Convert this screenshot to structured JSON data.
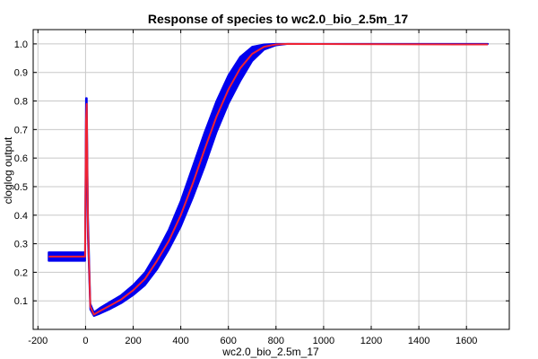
{
  "chart_data": {
    "type": "line",
    "title": "Response of species to wc2.0_bio_2.5m_17",
    "xlabel": "wc2.0_bio_2.5m_17",
    "ylabel": "cloglog output",
    "xlim": [
      -220,
      1780
    ],
    "ylim": [
      0.0,
      1.05
    ],
    "x_ticks": [
      -200,
      0,
      200,
      400,
      600,
      800,
      1000,
      1200,
      1400,
      1600
    ],
    "x_tick_labels": [
      "-200",
      "0",
      "200",
      "400",
      "600",
      "800",
      "1000",
      "1200",
      "1400",
      "1600"
    ],
    "y_ticks": [
      0.1,
      0.2,
      0.3,
      0.4,
      0.5,
      0.6,
      0.7,
      0.8,
      0.9,
      1.0
    ],
    "y_tick_labels": [
      "0.1",
      "0.2",
      "0.3",
      "0.4",
      "0.5",
      "0.6",
      "0.7",
      "0.8",
      "0.9",
      "1.0"
    ],
    "grid": true,
    "series": [
      {
        "role": "band",
        "color": "#0000ee",
        "upper": [
          [
            -155,
            0.27
          ],
          [
            -2,
            0.27
          ],
          [
            2,
            0.81
          ],
          [
            5,
            0.81
          ],
          [
            10,
            0.4
          ],
          [
            20,
            0.09
          ],
          [
            35,
            0.06
          ],
          [
            60,
            0.075
          ],
          [
            100,
            0.095
          ],
          [
            150,
            0.12
          ],
          [
            200,
            0.155
          ],
          [
            250,
            0.2
          ],
          [
            300,
            0.27
          ],
          [
            350,
            0.35
          ],
          [
            400,
            0.45
          ],
          [
            450,
            0.57
          ],
          [
            500,
            0.69
          ],
          [
            550,
            0.8
          ],
          [
            600,
            0.89
          ],
          [
            650,
            0.955
          ],
          [
            700,
            0.99
          ],
          [
            750,
            0.998
          ],
          [
            800,
            1.0
          ],
          [
            1690,
            1.0
          ]
        ],
        "lower": [
          [
            -155,
            0.24
          ],
          [
            -2,
            0.24
          ],
          [
            2,
            0.65
          ],
          [
            5,
            0.7
          ],
          [
            10,
            0.32
          ],
          [
            20,
            0.07
          ],
          [
            35,
            0.047
          ],
          [
            60,
            0.055
          ],
          [
            100,
            0.07
          ],
          [
            150,
            0.092
          ],
          [
            200,
            0.12
          ],
          [
            250,
            0.155
          ],
          [
            300,
            0.21
          ],
          [
            350,
            0.28
          ],
          [
            400,
            0.36
          ],
          [
            450,
            0.46
          ],
          [
            500,
            0.57
          ],
          [
            550,
            0.69
          ],
          [
            600,
            0.79
          ],
          [
            650,
            0.87
          ],
          [
            700,
            0.94
          ],
          [
            750,
            0.98
          ],
          [
            800,
            0.995
          ],
          [
            850,
            1.0
          ],
          [
            1690,
            1.0
          ]
        ]
      },
      {
        "role": "mean",
        "color": "#ee2233",
        "points": [
          [
            -155,
            0.255
          ],
          [
            -2,
            0.255
          ],
          [
            2,
            0.73
          ],
          [
            5,
            0.79
          ],
          [
            10,
            0.36
          ],
          [
            20,
            0.08
          ],
          [
            35,
            0.052
          ],
          [
            60,
            0.064
          ],
          [
            100,
            0.082
          ],
          [
            150,
            0.105
          ],
          [
            200,
            0.137
          ],
          [
            250,
            0.177
          ],
          [
            300,
            0.24
          ],
          [
            350,
            0.31
          ],
          [
            400,
            0.4
          ],
          [
            450,
            0.51
          ],
          [
            500,
            0.63
          ],
          [
            550,
            0.745
          ],
          [
            600,
            0.84
          ],
          [
            650,
            0.915
          ],
          [
            700,
            0.965
          ],
          [
            750,
            0.99
          ],
          [
            800,
            0.998
          ],
          [
            850,
            1.0
          ],
          [
            1690,
            0.998
          ]
        ]
      }
    ]
  }
}
